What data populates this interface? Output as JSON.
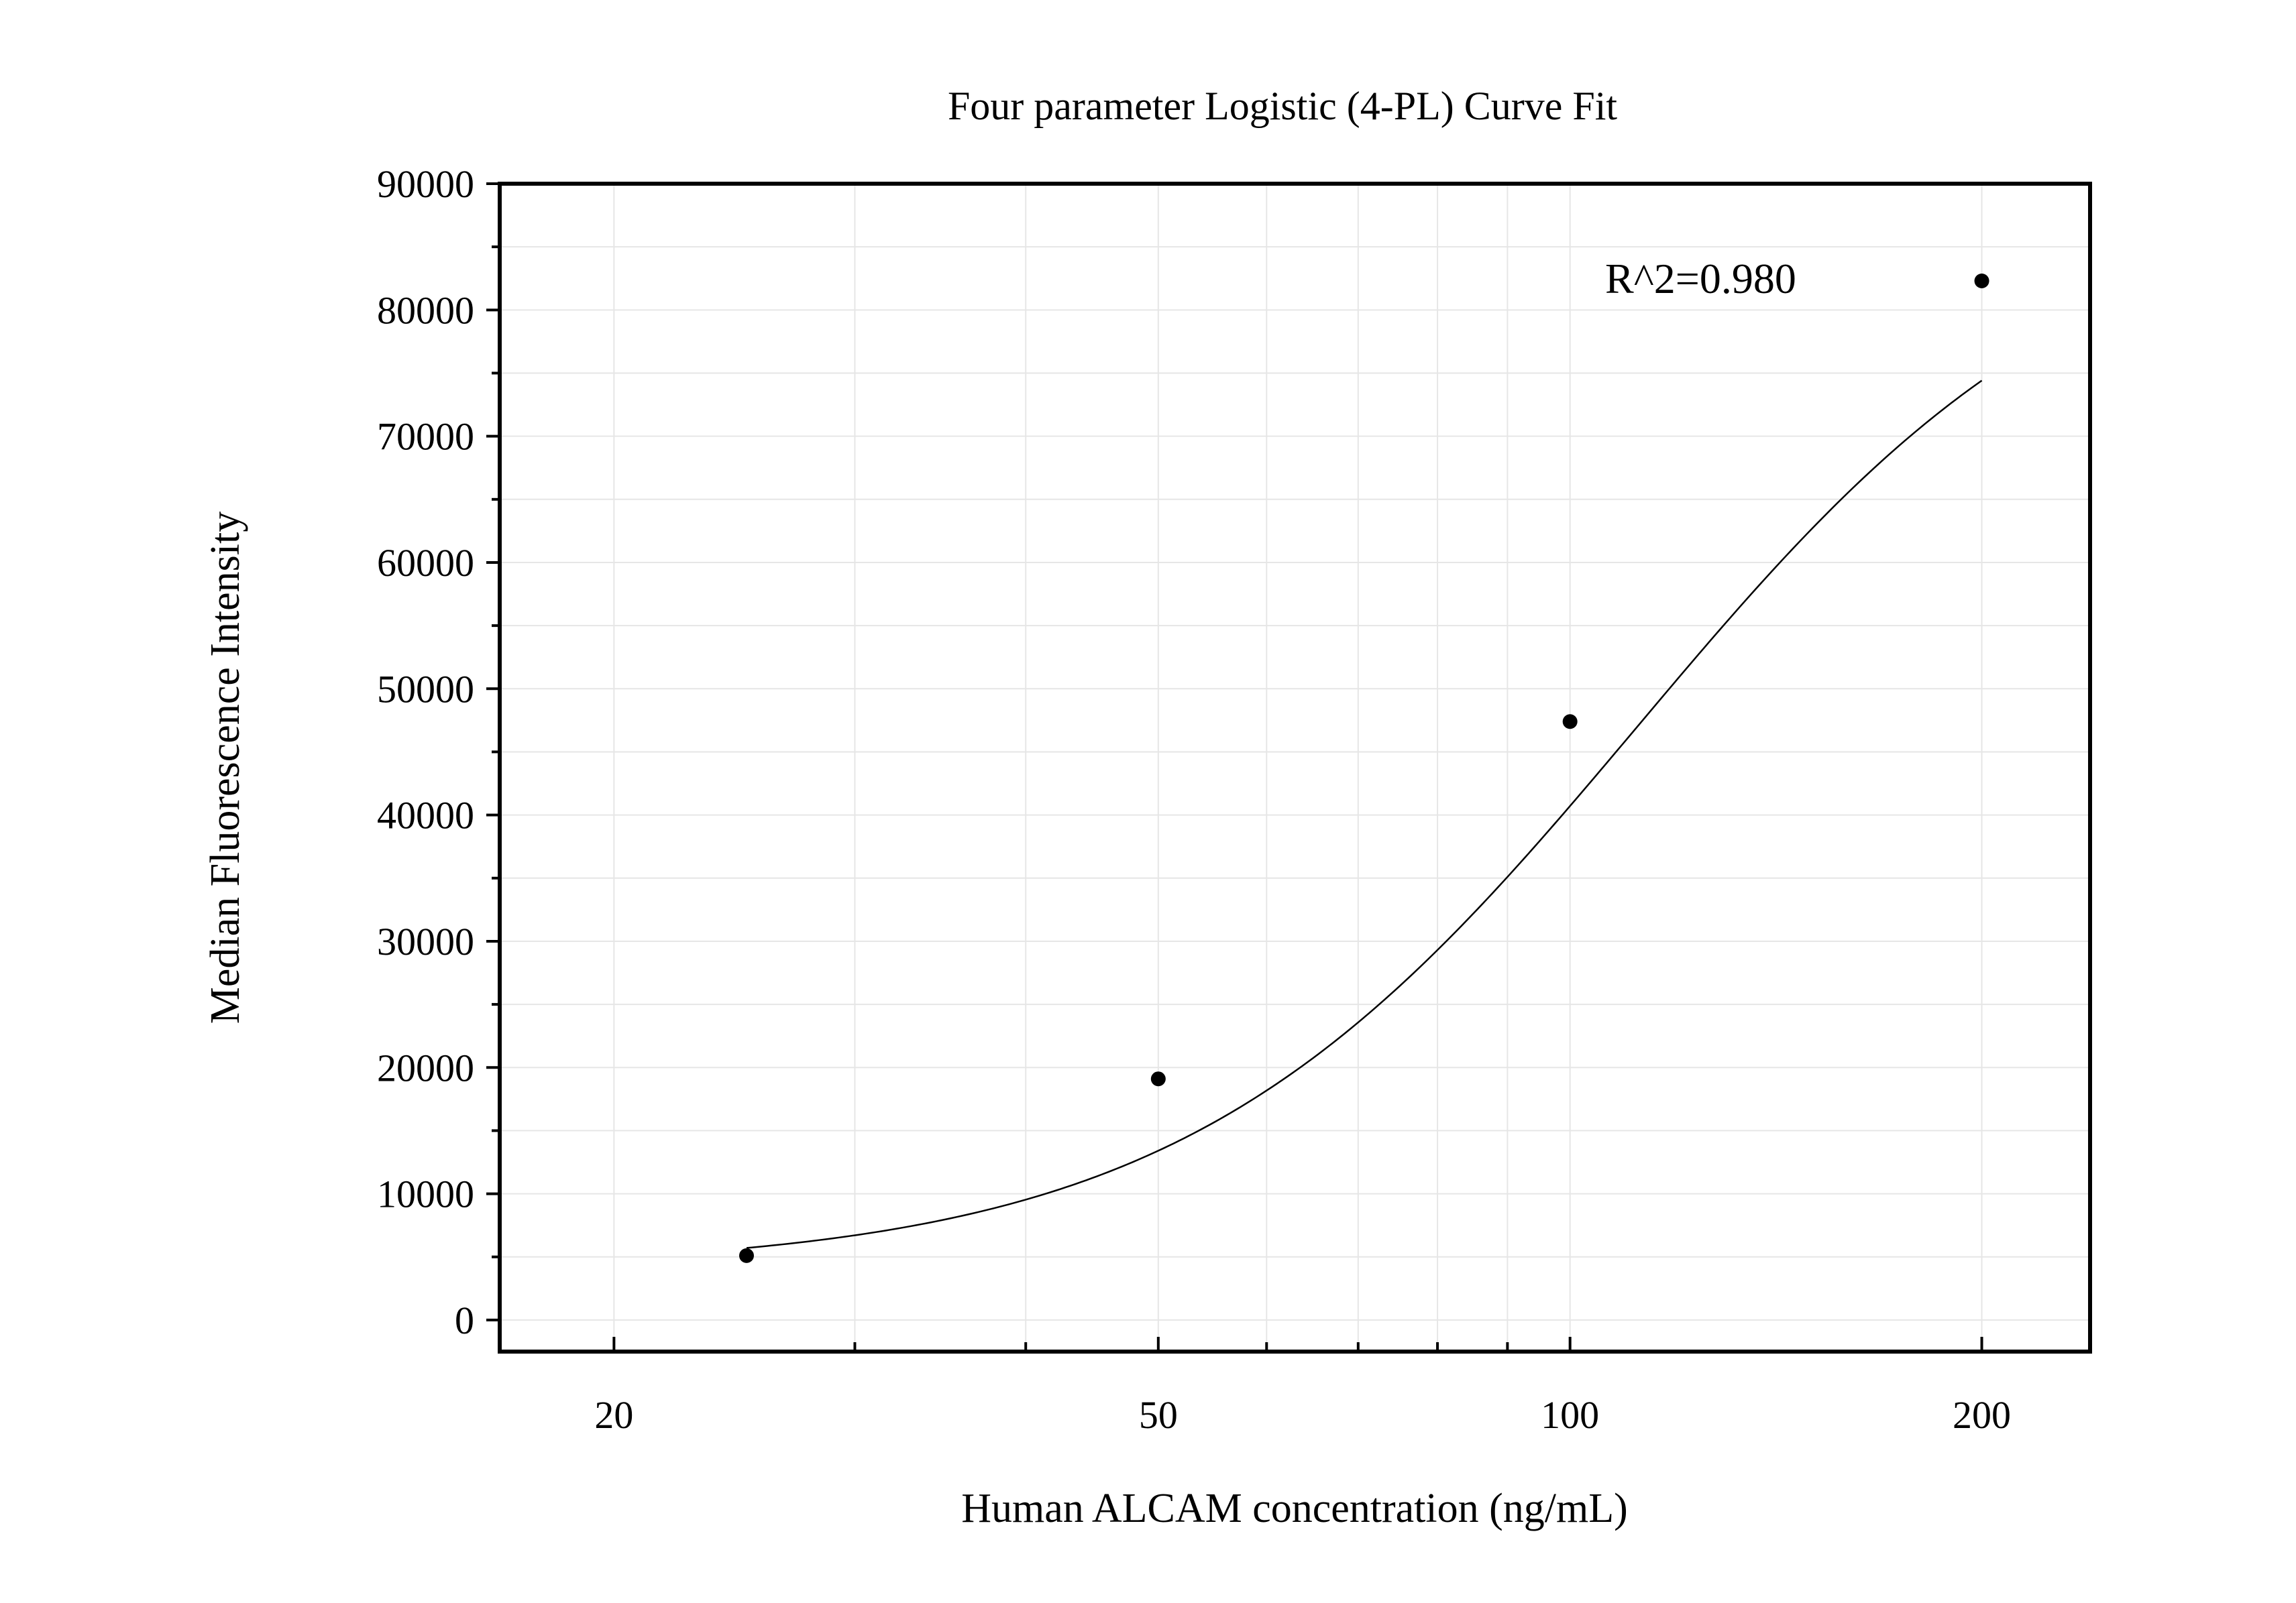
{
  "chart_data": {
    "type": "scatter",
    "title": "Four parameter Logistic (4-PL) Curve Fit",
    "xlabel": "Human ALCAM concentration (ng/mL)",
    "ylabel": "Median Fluorescence Intensity",
    "x_scale": "log",
    "xlim": [
      16.5,
      240
    ],
    "ylim": [
      -2500,
      90000
    ],
    "x_ticks": [
      20,
      50,
      100,
      200
    ],
    "x_tick_labels": [
      "20",
      "50",
      "100",
      "200"
    ],
    "x_minor_ticks": [
      30,
      40,
      60,
      70,
      80,
      90
    ],
    "y_ticks": [
      0,
      10000,
      20000,
      30000,
      40000,
      50000,
      60000,
      70000,
      80000,
      90000
    ],
    "y_tick_labels": [
      "0",
      "10000",
      "20000",
      "30000",
      "40000",
      "50000",
      "60000",
      "70000",
      "80000",
      "90000"
    ],
    "grid": true,
    "annotation": "R^2=0.980",
    "series": [
      {
        "kind": "points",
        "color": "#000000",
        "x": [
          25,
          50,
          100,
          200
        ],
        "y": [
          5100,
          19100,
          47400,
          82300
        ]
      },
      {
        "kind": "fit-curve",
        "color": "#000000",
        "model": "4PL",
        "params": {
          "bottom": 4000,
          "top": 90000,
          "ec50": 112,
          "hill": 2.6
        },
        "x_range": [
          25,
          200
        ]
      }
    ]
  }
}
